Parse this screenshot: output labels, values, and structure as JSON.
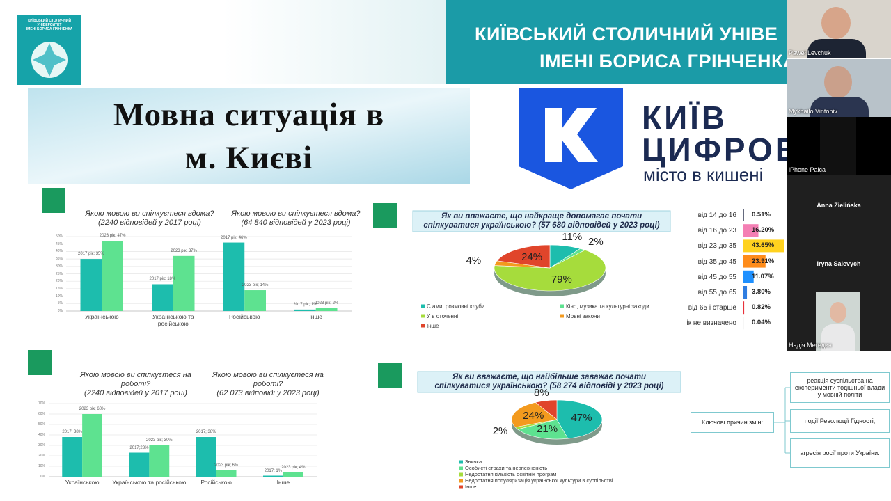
{
  "header": {
    "university": [
      "КИЇВСЬКИЙ СТОЛИЧНИЙ УНІВЕ",
      "ІМЕНІ БОРИСА ГРІНЧЕНКА"
    ],
    "logo_text": [
      "КИЇВСЬКИЙ СТОЛИЧНИЙ УНІВЕРСИТЕТ",
      "ІМЕНІ БОРИСА ГРІНЧЕНКА"
    ]
  },
  "slide_title": [
    "Мовна ситуація в",
    "м. Києві"
  ],
  "kyiv_digital": {
    "name": [
      "КИЇВ",
      "ЦИФРОВ"
    ],
    "tagline": "місто в кишені"
  },
  "chart_data": [
    {
      "type": "bar",
      "titles": [
        [
          "Якою мовою ви спілкуєтеся вдома?",
          "(2240 відповідей у 2017 році)"
        ],
        [
          "Якою мовою ви спілкуєтеся вдома?",
          "(64 840 відповідей у 2023 році)"
        ]
      ],
      "categories": [
        "Українською",
        "Українською та російською",
        "Російською",
        "Інше"
      ],
      "series": [
        {
          "color": "#1dbdad",
          "values": [
            35,
            18,
            46,
            1
          ],
          "value_labels": [
            "2017 рік; 35%",
            "2017 рік; 18%",
            "2017 рік; 46%",
            "2017 рік; 1%"
          ]
        },
        {
          "color": "#5ee290",
          "values": [
            47,
            37,
            14,
            2
          ],
          "value_labels": [
            "2023 рік; 47%",
            "2023 рік; 37%",
            "2023 рік; 14%",
            "2023 рік; 2%"
          ]
        }
      ],
      "ylim": [
        0,
        50
      ],
      "yticks": [
        {
          "value": 0,
          "label": "0%"
        },
        {
          "value": 5,
          "label": "5%"
        },
        {
          "value": 10,
          "label": "10%"
        },
        {
          "value": 15,
          "label": "15%"
        },
        {
          "value": 20,
          "label": "20%"
        },
        {
          "value": 25,
          "label": "25%"
        },
        {
          "value": 30,
          "label": "30%"
        },
        {
          "value": 35,
          "label": "35%"
        },
        {
          "value": 40,
          "label": "40%"
        },
        {
          "value": 45,
          "label": "45%"
        },
        {
          "value": 50,
          "label": "50%"
        }
      ],
      "grid": true
    },
    {
      "type": "pie",
      "title": [
        "Як ви вважаєте, що найкраще допомагає почати",
        "спілкуватися українською? (57 680 відповідей у 2023 році)"
      ],
      "categories": [
        "С ами, розмовні клуби",
        "Кіно, музика та культурні заходи",
        "У в оточенні",
        "Мовні закони",
        "Інше"
      ],
      "values": [
        11,
        2,
        79,
        4,
        24
      ],
      "value_labels": [
        "11%",
        "2%",
        "79%",
        "4%",
        "24%"
      ],
      "colors": [
        "#1dbdad",
        "#5ee290",
        "#a6dc3c",
        "#f39a1e",
        "#e0452b"
      ]
    },
    {
      "type": "hbar",
      "categories": [
        "від 14 до 16",
        "від 16 до 23",
        "від 23 до 35",
        "від 35 до 45",
        "від 45 до 55",
        "від 55 до 65",
        "від 65 і старше",
        "ік не визначено"
      ],
      "values": [
        0.51,
        16.2,
        43.65,
        23.91,
        11.07,
        3.8,
        0.82,
        0.04
      ],
      "value_labels": [
        "0.51%",
        "16.20%",
        "43.65%",
        "23.91%",
        "11.07%",
        "3.80%",
        "0.82%",
        "0.04%"
      ],
      "colors": [
        "#1c2340",
        "#f47fb4",
        "#ffd21f",
        "#ff8c1a",
        "#1e90ff",
        "#2f7de1",
        "#e8313a",
        "#555555"
      ]
    },
    {
      "type": "bar",
      "titles": [
        [
          "Якою мовою ви спілкуєтеся на",
          "роботі?",
          "(2240 відповідей у 2017 році)"
        ],
        [
          "Якою мовою ви спілкуєтеся на",
          "роботі?",
          "(62 073 відповіді у 2023 році)"
        ]
      ],
      "categories": [
        "Українською",
        "Українською та російською",
        "Російською",
        "Інше"
      ],
      "series": [
        {
          "color": "#1dbdad",
          "values": [
            38,
            23,
            38,
            1
          ],
          "value_labels": [
            "2017;  38%",
            "2017;23%",
            "2017; 38%",
            "2017; 1%"
          ]
        },
        {
          "color": "#5ee290",
          "values": [
            60,
            30,
            6,
            4
          ],
          "value_labels": [
            "2023 рік; 60%",
            "2023 рік; 30%",
            "2023 рік; 6%",
            "2023 рік; 4%"
          ]
        }
      ],
      "ylim": [
        0,
        70
      ],
      "yticks": [
        {
          "value": 0,
          "label": "0%"
        },
        {
          "value": 10,
          "label": "10%"
        },
        {
          "value": 20,
          "label": "20%"
        },
        {
          "value": 30,
          "label": "30%"
        },
        {
          "value": 40,
          "label": "40%"
        },
        {
          "value": 50,
          "label": "50%"
        },
        {
          "value": 60,
          "label": "60%"
        },
        {
          "value": 70,
          "label": "70%"
        }
      ],
      "grid": true
    },
    {
      "type": "pie",
      "title": [
        "Як ви вважаєте, що найбільше заважає почати",
        "спілкуватися українською? (58 274 відповіді у 2023 році)"
      ],
      "categories": [
        "Звичка",
        "Особисті страхи та невпевненість",
        "Недостатня кількість освітніх програм",
        "Недостатня популяризація української культури в суспільстві",
        "Інше"
      ],
      "values": [
        47,
        21,
        2,
        24,
        8
      ],
      "value_labels": [
        "47%",
        "21%",
        "2%",
        "24%",
        "8%"
      ],
      "colors": [
        "#1dbdad",
        "#5ee290",
        "#a6dc3c",
        "#f39a1e",
        "#e0452b"
      ]
    }
  ],
  "reasons": {
    "label": "Ключові причин змін:",
    "items": [
      "реакція суспільства на експерименти тодішньої влади у мовній політи",
      "події Революції Гідності;",
      "агресія росії проти України."
    ]
  },
  "participants": [
    "Paweł Levchuk",
    "Mykhailo Vintoniv",
    "iPhone Paica",
    "Anna Zielińska",
    "Iryna Saievych",
    "Надія Мегедин"
  ]
}
